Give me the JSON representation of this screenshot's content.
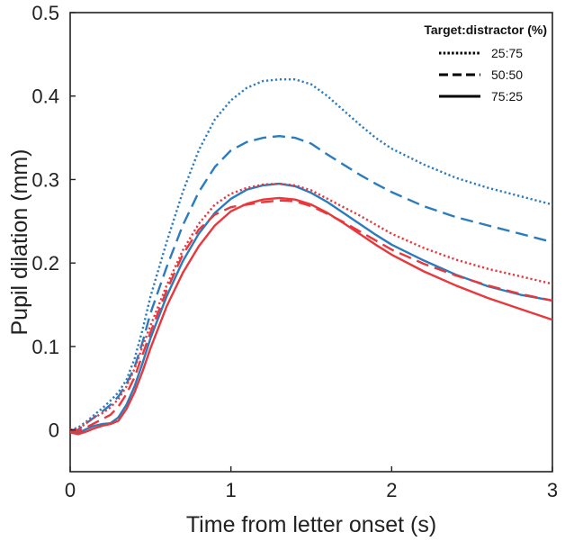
{
  "chart_data": {
    "type": "line",
    "title": "",
    "xlabel": "Time from letter onset (s)",
    "ylabel": "Pupil dilation (mm)",
    "xlim": [
      0,
      3
    ],
    "ylim": [
      -0.05,
      0.5
    ],
    "xticks": [
      0,
      1,
      2,
      3
    ],
    "xtick_labels": [
      "0",
      "1",
      "2",
      "3"
    ],
    "yticks": [
      0,
      0.1,
      0.2,
      0.3,
      0.4,
      0.5
    ],
    "ytick_labels": [
      "0",
      "0.1",
      "0.2",
      "0.3",
      "0.4",
      "0.5"
    ],
    "grid": false,
    "legend": {
      "title": "Target:distractor (%)",
      "position": "top-right",
      "entries": [
        {
          "label": "25:75",
          "style": "dotted"
        },
        {
          "label": "50:50",
          "style": "dashed"
        },
        {
          "label": "75:25",
          "style": "solid"
        }
      ]
    },
    "colors": {
      "blue": "#2b7bbd",
      "red": "#e8383c"
    },
    "x": [
      0,
      0.05,
      0.1,
      0.15,
      0.2,
      0.25,
      0.3,
      0.35,
      0.4,
      0.45,
      0.5,
      0.6,
      0.7,
      0.8,
      0.9,
      1.0,
      1.1,
      1.2,
      1.3,
      1.4,
      1.5,
      1.6,
      1.7,
      1.8,
      1.9,
      2.0,
      2.2,
      2.4,
      2.6,
      2.8,
      3.0
    ],
    "series": [
      {
        "color": "blue",
        "style": "dotted",
        "values": [
          0.0,
          0.003,
          0.01,
          0.018,
          0.026,
          0.035,
          0.045,
          0.06,
          0.085,
          0.12,
          0.16,
          0.225,
          0.285,
          0.335,
          0.372,
          0.395,
          0.41,
          0.418,
          0.42,
          0.42,
          0.414,
          0.4,
          0.383,
          0.366,
          0.35,
          0.337,
          0.318,
          0.302,
          0.29,
          0.28,
          0.27
        ]
      },
      {
        "color": "blue",
        "style": "dashed",
        "values": [
          0.0,
          0.0,
          0.008,
          0.015,
          0.022,
          0.03,
          0.04,
          0.055,
          0.075,
          0.105,
          0.14,
          0.195,
          0.245,
          0.285,
          0.315,
          0.335,
          0.345,
          0.35,
          0.352,
          0.35,
          0.343,
          0.33,
          0.318,
          0.306,
          0.295,
          0.285,
          0.268,
          0.255,
          0.245,
          0.235,
          0.225
        ]
      },
      {
        "color": "blue",
        "style": "solid",
        "values": [
          -0.002,
          -0.004,
          0.001,
          0.005,
          0.007,
          0.008,
          0.015,
          0.03,
          0.052,
          0.08,
          0.11,
          0.16,
          0.202,
          0.235,
          0.26,
          0.277,
          0.288,
          0.293,
          0.295,
          0.292,
          0.284,
          0.273,
          0.26,
          0.247,
          0.234,
          0.222,
          0.203,
          0.186,
          0.172,
          0.162,
          0.155
        ]
      },
      {
        "color": "red",
        "style": "dotted",
        "values": [
          0.0,
          0.001,
          0.008,
          0.015,
          0.02,
          0.027,
          0.037,
          0.052,
          0.073,
          0.1,
          0.125,
          0.173,
          0.215,
          0.247,
          0.27,
          0.283,
          0.29,
          0.294,
          0.295,
          0.293,
          0.287,
          0.277,
          0.267,
          0.257,
          0.246,
          0.235,
          0.218,
          0.204,
          0.193,
          0.184,
          0.175
        ]
      },
      {
        "color": "red",
        "style": "dashed",
        "values": [
          0.0,
          -0.002,
          0.003,
          0.008,
          0.013,
          0.018,
          0.028,
          0.043,
          0.063,
          0.09,
          0.117,
          0.167,
          0.21,
          0.24,
          0.258,
          0.267,
          0.27,
          0.273,
          0.275,
          0.274,
          0.268,
          0.259,
          0.249,
          0.238,
          0.227,
          0.216,
          0.199,
          0.185,
          0.173,
          0.163,
          0.155
        ]
      },
      {
        "color": "red",
        "style": "solid",
        "values": [
          -0.003,
          -0.005,
          -0.002,
          0.002,
          0.005,
          0.007,
          0.011,
          0.025,
          0.045,
          0.07,
          0.098,
          0.148,
          0.188,
          0.22,
          0.245,
          0.262,
          0.271,
          0.276,
          0.278,
          0.276,
          0.27,
          0.26,
          0.248,
          0.235,
          0.222,
          0.21,
          0.19,
          0.173,
          0.158,
          0.145,
          0.132
        ]
      }
    ]
  }
}
